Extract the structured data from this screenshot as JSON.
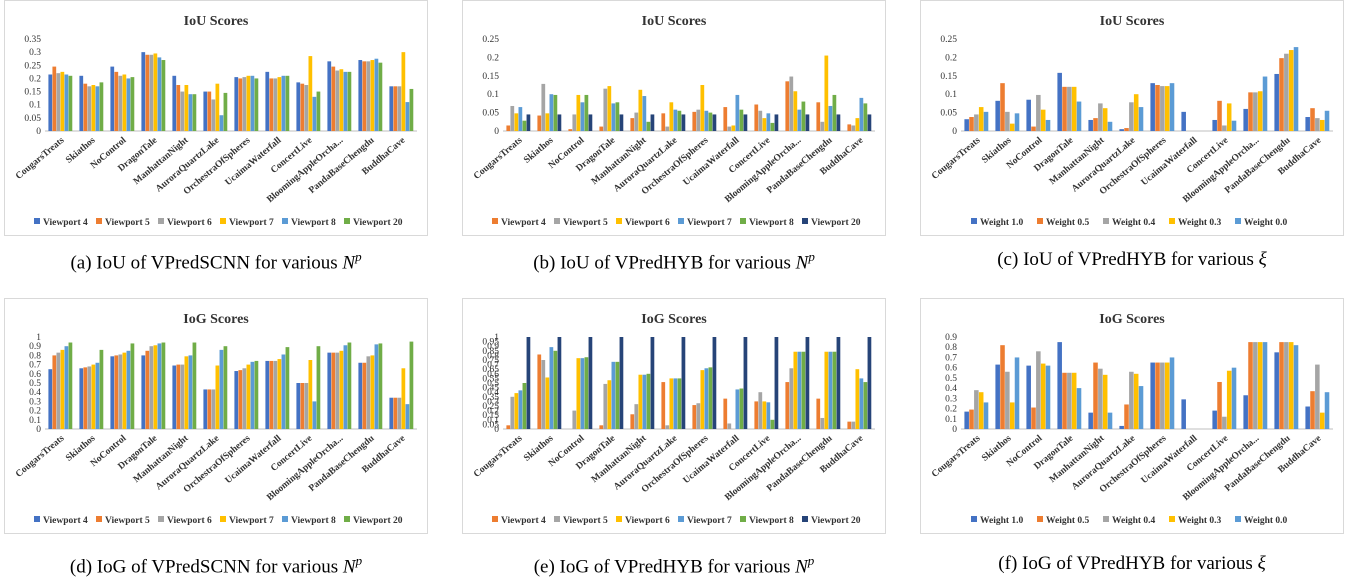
{
  "categories": [
    "CougarsTreats",
    "Skiathos",
    "NoControl",
    "DragonTale",
    "ManhattanNight",
    "AuroraQuartzLake",
    "OrchestraOfSpheres",
    "UcaimaWaterfall",
    "ConcertLive",
    "BloomingAppleOrcha...",
    "PandaBaseChengdu",
    "BuddhaCave"
  ],
  "colors": {
    "Viewport 4": "#4472c4",
    "Viewport 5": "#ed7d31",
    "Viewport 6": "#a5a5a5",
    "Viewport 7": "#ffc000",
    "Viewport 8": "#5b9bd5",
    "Viewport 20": "#70ad47",
    "Viewport 20 dark": "#264478",
    "Weight 1.0": "#4472c4",
    "Weight 0.5": "#ed7d31",
    "Weight 0.4": "#a5a5a5",
    "Weight 0.3": "#ffc000",
    "Weight 0.0": "#5b9bd5"
  },
  "captions": [
    {
      "prefix": "(a)  IoU of VPredSCNN for various ",
      "var": "N",
      "sup": "p"
    },
    {
      "prefix": "(b)  IoU of VPredHYB for various ",
      "var": "N",
      "sup": "p"
    },
    {
      "prefix": "(c)  IoU of VPredHYB for various ",
      "var": "ξ",
      "sup": ""
    },
    {
      "prefix": "(d)  IoG of VPredSCNN for various ",
      "var": "N",
      "sup": "p"
    },
    {
      "prefix": "(e)  IoG of VPredHYB for various ",
      "var": "N",
      "sup": "p"
    },
    {
      "prefix": "(f)  IoG of VPredHYB for various ",
      "var": "ξ",
      "sup": ""
    }
  ],
  "chart_data": [
    {
      "type": "bar",
      "title": "IoU Scores",
      "ylim": [
        0,
        0.35
      ],
      "yticks": [
        "0",
        "0.05",
        "0.1",
        "0.15",
        "0.2",
        "0.25",
        "0.3",
        "0.35"
      ],
      "categories": [
        "CougarsTreats",
        "Skiathos",
        "NoControl",
        "DragonTale",
        "ManhattanNight",
        "AuroraQuartzLake",
        "OrchestraOfSpheres",
        "UcaimaWaterfall",
        "ConcertLive",
        "BloomingAppleOrcha...",
        "PandaBaseChengdu",
        "BuddhaCave"
      ],
      "series": [
        {
          "name": "Viewport 4",
          "color": "#4472c4",
          "values": [
            0.215,
            0.21,
            0.245,
            0.3,
            0.21,
            0.15,
            0.205,
            0.225,
            0.185,
            0.265,
            0.27,
            0.17
          ]
        },
        {
          "name": "Viewport 5",
          "color": "#ed7d31",
          "values": [
            0.245,
            0.18,
            0.225,
            0.29,
            0.175,
            0.15,
            0.2,
            0.2,
            0.18,
            0.245,
            0.265,
            0.17
          ]
        },
        {
          "name": "Viewport 6",
          "color": "#a5a5a5",
          "values": [
            0.22,
            0.17,
            0.21,
            0.29,
            0.15,
            0.12,
            0.205,
            0.2,
            0.175,
            0.23,
            0.265,
            0.17
          ]
        },
        {
          "name": "Viewport 7",
          "color": "#ffc000",
          "values": [
            0.225,
            0.175,
            0.215,
            0.295,
            0.175,
            0.18,
            0.21,
            0.205,
            0.285,
            0.235,
            0.27,
            0.3
          ]
        },
        {
          "name": "Viewport 8",
          "color": "#5b9bd5",
          "values": [
            0.215,
            0.17,
            0.2,
            0.28,
            0.14,
            0.06,
            0.21,
            0.21,
            0.13,
            0.225,
            0.275,
            0.11
          ]
        },
        {
          "name": "Viewport 20",
          "color": "#70ad47",
          "values": [
            0.21,
            0.185,
            0.205,
            0.27,
            0.14,
            0.145,
            0.2,
            0.21,
            0.15,
            0.225,
            0.26,
            0.16
          ]
        }
      ]
    },
    {
      "type": "bar",
      "title": "IoU Scores",
      "ylim": [
        0,
        0.25
      ],
      "yticks": [
        "0",
        "0.05",
        "0.1",
        "0.15",
        "0.2",
        "0.25"
      ],
      "categories": [
        "CougarsTreats",
        "Skiathos",
        "NoControl",
        "DragonTale",
        "ManhattanNight",
        "AuroraQuartzLake",
        "OrchestraOfSpheres",
        "UcaimaWaterfall",
        "ConcertLive",
        "BloomingAppleOrcha...",
        "PandaBaseChengdu",
        "BuddhaCave"
      ],
      "series": [
        {
          "name": "Viewport 4",
          "color": "#ed7d31",
          "values": [
            0.015,
            0.042,
            0.005,
            0.012,
            0.035,
            0.048,
            0.052,
            0.065,
            0.072,
            0.135,
            0.078,
            0.018
          ]
        },
        {
          "name": "Viewport 5",
          "color": "#a5a5a5",
          "values": [
            0.068,
            0.128,
            0.045,
            0.115,
            0.05,
            0.012,
            0.058,
            0.012,
            0.055,
            0.148,
            0.025,
            0.015
          ]
        },
        {
          "name": "Viewport 6",
          "color": "#ffc000",
          "values": [
            0.048,
            0.048,
            0.098,
            0.122,
            0.112,
            0.078,
            0.125,
            0.015,
            0.035,
            0.108,
            0.205,
            0.035
          ]
        },
        {
          "name": "Viewport 7",
          "color": "#5b9bd5",
          "values": [
            0.065,
            0.1,
            0.078,
            0.075,
            0.095,
            0.058,
            0.055,
            0.098,
            0.048,
            0.058,
            0.068,
            0.09
          ]
        },
        {
          "name": "Viewport 8",
          "color": "#70ad47",
          "values": [
            0.028,
            0.098,
            0.098,
            0.078,
            0.025,
            0.055,
            0.05,
            0.058,
            0.022,
            0.08,
            0.098,
            0.075
          ]
        },
        {
          "name": "Viewport 20",
          "color": "#264478",
          "values": [
            0.045,
            0.045,
            0.045,
            0.045,
            0.045,
            0.045,
            0.045,
            0.045,
            0.045,
            0.045,
            0.045,
            0.045
          ]
        }
      ]
    },
    {
      "type": "bar",
      "title": "IoU Scores",
      "ylim": [
        0,
        0.25
      ],
      "yticks": [
        "0",
        "0.05",
        "0.1",
        "0.15",
        "0.2",
        "0.25"
      ],
      "categories": [
        "CougarsTreats",
        "Skiathos",
        "NoControl",
        "DragonTale",
        "ManhattanNight",
        "AuroraQuartzLake",
        "OrchestraOfSpheres",
        "UcaimaWaterfall",
        "ConcertLive",
        "BloomingAppleOrcha...",
        "PandaBaseChengdu",
        "BuddhaCave"
      ],
      "series": [
        {
          "name": "Weight 1.0",
          "color": "#4472c4",
          "values": [
            0.032,
            0.082,
            0.085,
            0.158,
            0.03,
            0.005,
            0.13,
            0.052,
            0.03,
            0.06,
            0.155,
            0.038
          ]
        },
        {
          "name": "Weight 0.5",
          "color": "#ed7d31",
          "values": [
            0.038,
            0.13,
            0.012,
            0.12,
            0.035,
            0.008,
            0.125,
            0.0,
            0.082,
            0.105,
            0.198,
            0.062
          ]
        },
        {
          "name": "Weight 0.4",
          "color": "#a5a5a5",
          "values": [
            0.045,
            0.052,
            0.098,
            0.12,
            0.075,
            0.078,
            0.122,
            0.0,
            0.015,
            0.105,
            0.21,
            0.035
          ]
        },
        {
          "name": "Weight 0.3",
          "color": "#ffc000",
          "values": [
            0.065,
            0.02,
            0.058,
            0.12,
            0.062,
            0.1,
            0.122,
            0.0,
            0.075,
            0.108,
            0.22,
            0.03
          ]
        },
        {
          "name": "Weight 0.0",
          "color": "#5b9bd5",
          "values": [
            0.052,
            0.048,
            0.03,
            0.08,
            0.025,
            0.065,
            0.13,
            0.0,
            0.028,
            0.148,
            0.228,
            0.055
          ]
        }
      ]
    },
    {
      "type": "bar",
      "title": "IoG Scores",
      "ylim": [
        0,
        1
      ],
      "yticks": [
        "0",
        "0.1",
        "0.2",
        "0.3",
        "0.4",
        "0.5",
        "0.6",
        "0.7",
        "0.8",
        "0.9",
        "1"
      ],
      "categories": [
        "CougarsTreats",
        "Skiathos",
        "NoControl",
        "DragonTale",
        "ManhattanNight",
        "AuroraQuartzLake",
        "OrchestraOfSpheres",
        "UcaimaWaterfall",
        "ConcertLive",
        "BloomingAppleOrcha...",
        "PandaBaseChengdu",
        "BuddhaCave"
      ],
      "series": [
        {
          "name": "Viewport 4",
          "color": "#4472c4",
          "values": [
            0.65,
            0.66,
            0.79,
            0.8,
            0.69,
            0.43,
            0.63,
            0.74,
            0.5,
            0.83,
            0.72,
            0.34
          ]
        },
        {
          "name": "Viewport 5",
          "color": "#ed7d31",
          "values": [
            0.8,
            0.67,
            0.8,
            0.85,
            0.7,
            0.43,
            0.64,
            0.74,
            0.5,
            0.83,
            0.72,
            0.34
          ]
        },
        {
          "name": "Viewport 6",
          "color": "#a5a5a5",
          "values": [
            0.83,
            0.68,
            0.81,
            0.9,
            0.7,
            0.43,
            0.66,
            0.74,
            0.5,
            0.83,
            0.79,
            0.34
          ]
        },
        {
          "name": "Viewport 7",
          "color": "#ffc000",
          "values": [
            0.86,
            0.7,
            0.83,
            0.91,
            0.79,
            0.69,
            0.7,
            0.76,
            0.75,
            0.85,
            0.8,
            0.66
          ]
        },
        {
          "name": "Viewport 8",
          "color": "#5b9bd5",
          "values": [
            0.9,
            0.72,
            0.85,
            0.93,
            0.8,
            0.86,
            0.73,
            0.81,
            0.3,
            0.91,
            0.92,
            0.27
          ]
        },
        {
          "name": "Viewport 20",
          "color": "#70ad47",
          "values": [
            0.94,
            0.86,
            0.93,
            0.94,
            0.94,
            0.9,
            0.74,
            0.89,
            0.9,
            0.94,
            0.93,
            0.95
          ]
        }
      ]
    },
    {
      "type": "bar",
      "title": "IoG Scores",
      "ylim": [
        0,
        1
      ],
      "yticks": [
        "0",
        "0.05",
        "0.1",
        "0.15",
        "0.2",
        "0.25",
        "0.3",
        "0.35",
        "0.4",
        "0.45",
        "0.5",
        "0.55",
        "0.6",
        "0.65",
        "0.7",
        "0.75",
        "0.8",
        "0.85",
        "0.9",
        "0.95",
        "1"
      ],
      "categories": [
        "CougarsTreats",
        "Skiathos",
        "NoControl",
        "DragonTale",
        "ManhattanNight",
        "AuroraQuartzLake",
        "OrchestraOfSpheres",
        "UcaimaWaterfall",
        "ConcertLive",
        "BloomingAppleOrcha...",
        "PandaBaseChengdu",
        "BuddhaCave"
      ],
      "series": [
        {
          "name": "Viewport 4",
          "color": "#ed7d31",
          "values": [
            0.04,
            0.81,
            0.0,
            0.04,
            0.16,
            0.51,
            0.26,
            0.33,
            0.3,
            0.51,
            0.33,
            0.08
          ]
        },
        {
          "name": "Viewport 5",
          "color": "#a5a5a5",
          "values": [
            0.35,
            0.75,
            0.2,
            0.49,
            0.27,
            0.04,
            0.28,
            0.06,
            0.4,
            0.66,
            0.12,
            0.08
          ]
        },
        {
          "name": "Viewport 6",
          "color": "#ffc000",
          "values": [
            0.39,
            0.56,
            0.77,
            0.53,
            0.59,
            0.55,
            0.64,
            0.0,
            0.3,
            0.84,
            0.84,
            0.65
          ]
        },
        {
          "name": "Viewport 7",
          "color": "#5b9bd5",
          "values": [
            0.42,
            0.89,
            0.77,
            0.73,
            0.59,
            0.55,
            0.66,
            0.43,
            0.29,
            0.84,
            0.84,
            0.55
          ]
        },
        {
          "name": "Viewport 8",
          "color": "#70ad47",
          "values": [
            0.5,
            0.85,
            0.78,
            0.73,
            0.6,
            0.55,
            0.67,
            0.44,
            0.1,
            0.84,
            0.84,
            0.51
          ]
        },
        {
          "name": "Viewport 20",
          "color": "#264478",
          "values": [
            1,
            1,
            1,
            1,
            1,
            1,
            1,
            1,
            1,
            1,
            1,
            1
          ]
        }
      ]
    },
    {
      "type": "bar",
      "title": "IoG Scores",
      "ylim": [
        0,
        0.9
      ],
      "yticks": [
        "0",
        "0.1",
        "0.2",
        "0.3",
        "0.4",
        "0.5",
        "0.6",
        "0.7",
        "0.8",
        "0.9"
      ],
      "categories": [
        "CougarsTreats",
        "Skiathos",
        "NoControl",
        "DragonTale",
        "ManhattanNight",
        "AuroraQuartzLake",
        "OrchestraOfSpheres",
        "UcaimaWaterfall",
        "ConcertLive",
        "BloomingAppleOrcha...",
        "PandaBaseChengdu",
        "BuddhaCave"
      ],
      "series": [
        {
          "name": "Weight 1.0",
          "color": "#4472c4",
          "values": [
            0.17,
            0.63,
            0.62,
            0.85,
            0.16,
            0.03,
            0.65,
            0.29,
            0.18,
            0.33,
            0.75,
            0.22
          ]
        },
        {
          "name": "Weight 0.5",
          "color": "#ed7d31",
          "values": [
            0.19,
            0.82,
            0.21,
            0.55,
            0.65,
            0.24,
            0.65,
            0.0,
            0.46,
            0.85,
            0.85,
            0.37
          ]
        },
        {
          "name": "Weight 0.4",
          "color": "#a5a5a5",
          "values": [
            0.38,
            0.56,
            0.76,
            0.55,
            0.59,
            0.56,
            0.65,
            0.0,
            0.12,
            0.85,
            0.85,
            0.63
          ]
        },
        {
          "name": "Weight 0.3",
          "color": "#ffc000",
          "values": [
            0.36,
            0.26,
            0.64,
            0.55,
            0.53,
            0.54,
            0.65,
            0.0,
            0.57,
            0.85,
            0.85,
            0.16
          ]
        },
        {
          "name": "Weight 0.0",
          "color": "#5b9bd5",
          "values": [
            0.26,
            0.7,
            0.62,
            0.4,
            0.16,
            0.42,
            0.7,
            0.0,
            0.6,
            0.85,
            0.82,
            0.36
          ]
        }
      ]
    }
  ]
}
